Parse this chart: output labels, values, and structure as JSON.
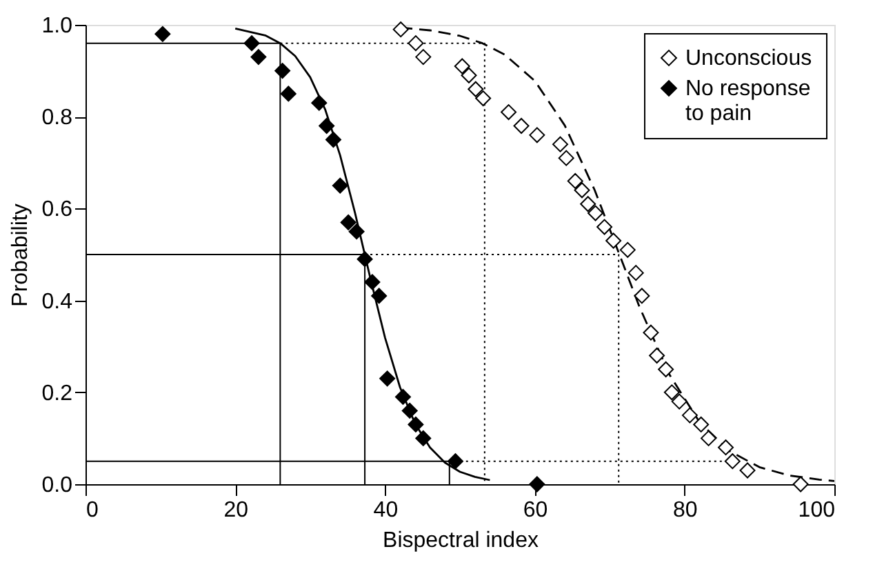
{
  "chart_data": {
    "type": "scatter",
    "xlabel": "Bispectral index",
    "ylabel": "Probability",
    "xlim": [
      0,
      100
    ],
    "xticks": [
      0,
      20,
      40,
      60,
      80,
      100
    ],
    "ylim": [
      0,
      1.0
    ],
    "yticks": [
      {
        "value": 0,
        "label": "0.0"
      },
      0.2,
      0.4,
      0.6,
      0.8,
      {
        "value": 1,
        "label": "1.0"
      }
    ],
    "grid": false,
    "legend": "top right",
    "marker": "diamond",
    "series": [
      {
        "name": "Unconscious",
        "color": "#ffffff",
        "x": [
          42.1,
          44.1,
          45.1,
          50.3,
          51.2,
          52.1,
          53.1,
          56.5,
          58.2,
          60.3,
          63.4,
          64.2,
          65.4,
          66.3,
          67.1,
          68.1,
          69.3,
          70.5,
          72.4,
          73.5,
          74.3,
          75.5,
          76.3,
          77.5,
          78.3,
          79.3,
          80.7,
          82.2,
          83.2,
          85.5,
          86.4,
          88.4,
          95.5
        ],
        "values": [
          0.99,
          0.96,
          0.93,
          0.91,
          0.89,
          0.86,
          0.84,
          0.81,
          0.78,
          0.76,
          0.74,
          0.71,
          0.66,
          0.64,
          0.61,
          0.59,
          0.56,
          0.53,
          0.51,
          0.46,
          0.41,
          0.33,
          0.28,
          0.25,
          0.2,
          0.18,
          0.15,
          0.13,
          0.1,
          0.08,
          0.05,
          0.03,
          0.0
        ]
      },
      {
        "name": "No response to pain",
        "color": "#000000",
        "x": [
          10.3,
          22.2,
          23.1,
          26.3,
          27.1,
          31.2,
          32.2,
          33.1,
          34.0,
          35.1,
          36.2,
          37.3,
          38.3,
          39.2,
          40.3,
          42.4,
          43.3,
          44.1,
          45.1,
          49.4,
          60.3
        ],
        "values": [
          0.98,
          0.96,
          0.93,
          0.9,
          0.85,
          0.83,
          0.78,
          0.75,
          0.65,
          0.57,
          0.55,
          0.49,
          0.44,
          0.41,
          0.23,
          0.19,
          0.16,
          0.13,
          0.1,
          0.05,
          0.0
        ]
      },
      {
        "type": "line",
        "color": "#000000",
        "line_style": "dashed",
        "marker": "none",
        "x": [
          42,
          46,
          50,
          53,
          56,
          60,
          64,
          68,
          71.3,
          74,
          78,
          82,
          86,
          90,
          94,
          98,
          100
        ],
        "values": [
          0.994,
          0.988,
          0.976,
          0.96,
          0.935,
          0.878,
          0.781,
          0.64,
          0.5,
          0.385,
          0.238,
          0.135,
          0.072,
          0.037,
          0.019,
          0.01,
          0.007
        ]
      },
      {
        "type": "line",
        "color": "#000000",
        "line_style": "solid",
        "marker": "none",
        "x": [
          20,
          24,
          26,
          28,
          30,
          32,
          34,
          36,
          38,
          40,
          42,
          44,
          46,
          48,
          50,
          52,
          54
        ],
        "values": [
          0.992,
          0.977,
          0.96,
          0.932,
          0.886,
          0.816,
          0.716,
          0.59,
          0.451,
          0.319,
          0.211,
          0.132,
          0.08,
          0.047,
          0.027,
          0.016,
          0.009
        ]
      },
      {
        "type": "line",
        "color": "#000000",
        "line_style": "solid",
        "marker": "none",
        "x": [
          0,
          26,
          26
        ],
        "values": [
          0.96,
          0.96,
          0
        ]
      },
      {
        "type": "line",
        "color": "#000000",
        "line_style": "solid",
        "marker": "none",
        "x": [
          0,
          37.3,
          37.3
        ],
        "values": [
          0.5,
          0.5,
          0
        ]
      },
      {
        "type": "line",
        "color": "#000000",
        "line_style": "solid",
        "marker": "none",
        "x": [
          0,
          48.6,
          48.6
        ],
        "values": [
          0.05,
          0.05,
          0
        ]
      },
      {
        "type": "line",
        "color": "#000000",
        "line_style": "dotted",
        "marker": "none",
        "x": [
          26,
          53.3,
          53.3
        ],
        "values": [
          0.96,
          0.96,
          0
        ]
      },
      {
        "type": "line",
        "color": "#000000",
        "line_style": "dotted",
        "marker": "none",
        "x": [
          37.3,
          71.2,
          71.2
        ],
        "values": [
          0.5,
          0.5,
          0
        ]
      },
      {
        "type": "line",
        "color": "#000000",
        "line_style": "dotted",
        "marker": "none",
        "x": [
          48.6,
          86
        ],
        "values": [
          0.05,
          0.05
        ]
      }
    ]
  }
}
